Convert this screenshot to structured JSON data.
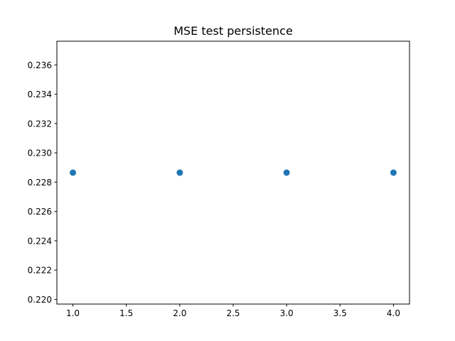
{
  "chart_data": {
    "type": "scatter",
    "title": "MSE test persistence",
    "xlabel": "",
    "ylabel": "",
    "x": [
      1.0,
      2.0,
      3.0,
      4.0
    ],
    "series": [
      {
        "values": [
          0.22865,
          0.22865,
          0.22865,
          0.22865
        ],
        "color": "#1f77b4",
        "marker": "circle"
      }
    ],
    "xlim": [
      0.85,
      4.15
    ],
    "ylim": [
      0.21968,
      0.23762
    ],
    "xticks": [
      1.0,
      1.5,
      2.0,
      2.5,
      3.0,
      3.5,
      4.0
    ],
    "xtick_labels": [
      "1.0",
      "1.5",
      "2.0",
      "2.5",
      "3.0",
      "3.5",
      "4.0"
    ],
    "yticks": [
      0.22,
      0.222,
      0.224,
      0.226,
      0.228,
      0.23,
      0.232,
      0.234,
      0.236
    ],
    "ytick_labels": [
      "0.220",
      "0.222",
      "0.224",
      "0.226",
      "0.228",
      "0.230",
      "0.232",
      "0.234",
      "0.236"
    ],
    "grid": false,
    "legend": "none"
  }
}
